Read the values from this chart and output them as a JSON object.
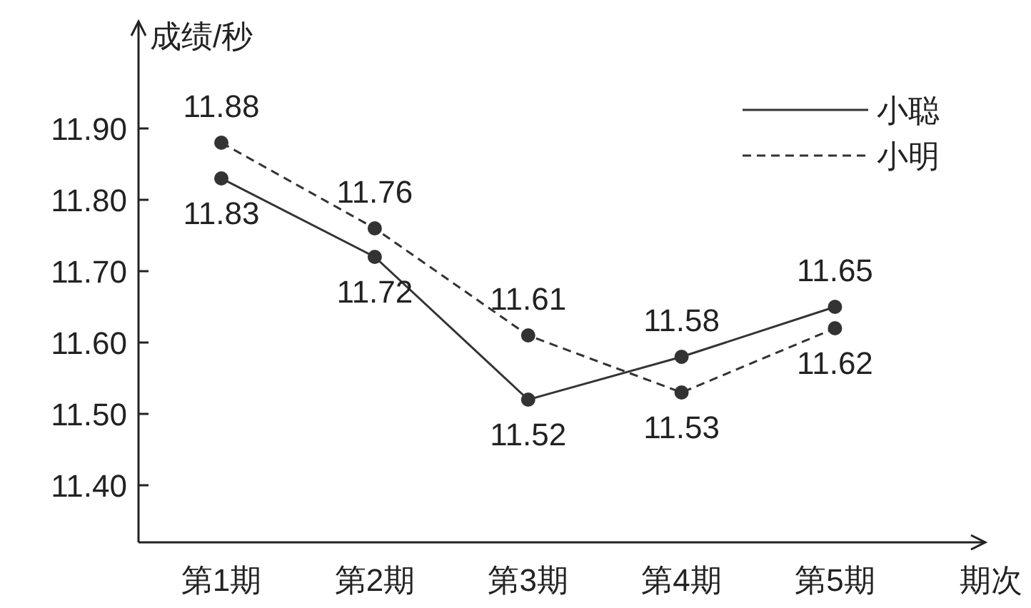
{
  "chart_data": {
    "type": "line",
    "ylabel": "成绩/秒",
    "xlabel": "期次",
    "categories": [
      "第1期",
      "第2期",
      "第3期",
      "第4期",
      "第5期"
    ],
    "series": [
      {
        "name": "小聪",
        "color": "#333333",
        "line_style": "solid",
        "values": [
          11.83,
          11.72,
          11.52,
          11.58,
          11.65
        ]
      },
      {
        "name": "小明",
        "color": "#333333",
        "line_style": "dashed",
        "values": [
          11.88,
          11.76,
          11.61,
          11.53,
          11.62
        ]
      }
    ],
    "ylim": [
      11.32,
      12.05
    ],
    "yticks": [
      {
        "value": 11.4,
        "label": "11.40"
      },
      {
        "value": 11.5,
        "label": "11.50"
      },
      {
        "value": 11.6,
        "label": "11.60"
      },
      {
        "value": 11.7,
        "label": "11.70"
      },
      {
        "value": 11.8,
        "label": "11.80"
      },
      {
        "value": 11.9,
        "label": "11.90"
      }
    ],
    "marker": "circle",
    "data_labels": true,
    "legend": "top right"
  }
}
